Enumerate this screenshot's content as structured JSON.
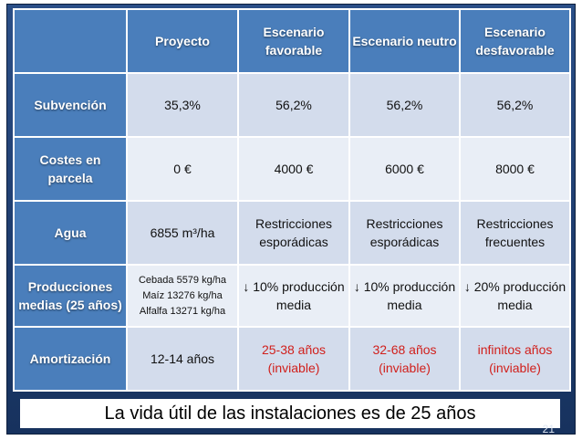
{
  "table": {
    "headers": [
      "",
      "Proyecto",
      "Escenario favorable",
      "Escenario neutro",
      "Escenario desfavorable"
    ],
    "rows": [
      {
        "label": "Subvención",
        "cells": [
          "35,3%",
          "56,2%",
          "56,2%",
          "56,2%"
        ]
      },
      {
        "label": "Costes en parcela",
        "cells": [
          "0 €",
          "4000 €",
          "6000 €",
          "8000 €"
        ]
      },
      {
        "label": "Agua",
        "cells": [
          "6855 m³/ha",
          "Restricciones esporádicas",
          "Restricciones esporádicas",
          "Restricciones frecuentes"
        ]
      },
      {
        "label": "Producciones medias (25 años)",
        "cells": [
          "Cebada 5579 kg/ha Maíz 13276 kg/ha Alfalfa 13271 kg/ha",
          "↓ 10% producción media",
          "↓ 10% producción media",
          "↓ 20% producción media"
        ]
      },
      {
        "label": "Amortización",
        "cells": [
          "12-14 años",
          "25-38 años (inviable)",
          "32-68 años (inviable)",
          "infinitos años (inviable)"
        ]
      }
    ]
  },
  "footer_text": "La vida útil de las instalaciones es de 25 años",
  "page_number": "21",
  "colors": {
    "header_bg": "#4a7ebb",
    "cell_alt_a": "#d3dcec",
    "cell_alt_b": "#e9eef6",
    "warning_text": "#d1201c",
    "background": "#1f3c6e"
  }
}
